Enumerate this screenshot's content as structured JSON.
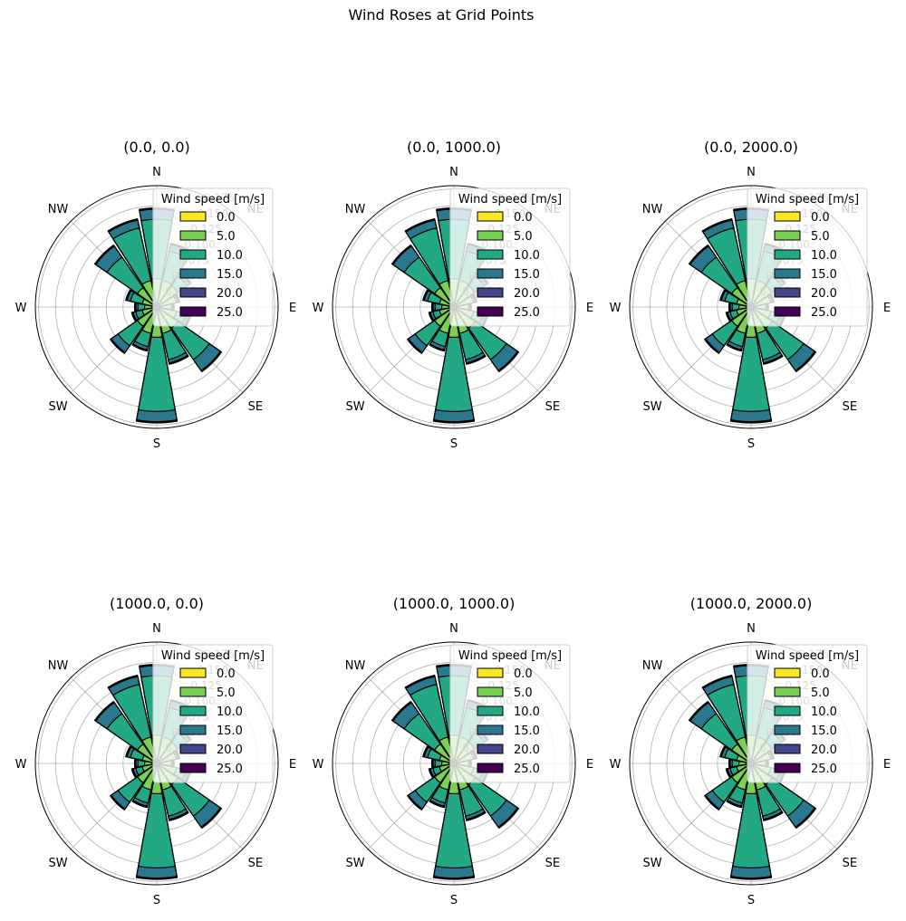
{
  "title": "Wind Roses at Grid Points",
  "chart_data": {
    "type": "wind_rose",
    "directions": [
      "N",
      "NNE",
      "NE",
      "ENE",
      "E",
      "ESE",
      "SE",
      "SSE",
      "S",
      "SSW",
      "SW",
      "WSW",
      "W",
      "WNW",
      "NW",
      "NNW"
    ],
    "direction_labels": [
      "N",
      "NE",
      "E",
      "SE",
      "S",
      "SW",
      "W",
      "NW"
    ],
    "radial_ticks": [
      "0.025",
      "0.050",
      "0.075",
      "0.100",
      "0.125",
      "0.150",
      "0.175"
    ],
    "rmax": 0.18,
    "colors": {
      "bin_0": "#fde725",
      "bin_5": "#7ad151",
      "bin_10": "#22a884",
      "bin_15": "#2a788e",
      "bin_20": "#414487",
      "bin_25": "#440154"
    },
    "legend": {
      "title": "Wind speed [m/s]",
      "placement": "upper-right",
      "entries": [
        "0.0",
        "5.0",
        "10.0",
        "15.0",
        "20.0",
        "25.0"
      ]
    },
    "series": [
      {
        "name": "0.0",
        "values": [
          0.005,
          0.005,
          0.005,
          0.005,
          0.005,
          0.005,
          0.005,
          0.005,
          0.005,
          0.005,
          0.005,
          0.005,
          0.005,
          0.005,
          0.005,
          0.005
        ]
      },
      {
        "name": "5.0",
        "values": [
          0.042,
          0.04,
          0.038,
          0.03,
          0.022,
          0.03,
          0.038,
          0.04,
          0.045,
          0.04,
          0.035,
          0.022,
          0.018,
          0.022,
          0.035,
          0.04
        ]
      },
      {
        "name": "10.0",
        "values": [
          0.13,
          0.085,
          0.055,
          0.03,
          0.022,
          0.045,
          0.095,
          0.08,
          0.155,
          0.06,
          0.07,
          0.032,
          0.028,
          0.04,
          0.09,
          0.12
        ]
      },
      {
        "name": "15.0",
        "values": [
          0.145,
          0.095,
          0.06,
          0.033,
          0.024,
          0.05,
          0.115,
          0.085,
          0.17,
          0.065,
          0.082,
          0.036,
          0.031,
          0.045,
          0.11,
          0.132
        ]
      },
      {
        "name": "20.0",
        "values": [
          0.146,
          0.096,
          0.061,
          0.034,
          0.025,
          0.051,
          0.116,
          0.086,
          0.171,
          0.066,
          0.083,
          0.037,
          0.032,
          0.046,
          0.111,
          0.133
        ]
      },
      {
        "name": "25.0",
        "values": [
          0.147,
          0.097,
          0.062,
          0.035,
          0.026,
          0.052,
          0.117,
          0.087,
          0.172,
          0.067,
          0.084,
          0.038,
          0.033,
          0.047,
          0.112,
          0.134
        ]
      }
    ],
    "subplots": [
      {
        "title": "(0.0, 0.0)"
      },
      {
        "title": "(0.0, 1000.0)"
      },
      {
        "title": "(0.0, 2000.0)"
      },
      {
        "title": "(1000.0, 0.0)"
      },
      {
        "title": "(1000.0, 1000.0)"
      },
      {
        "title": "(1000.0, 2000.0)"
      }
    ]
  }
}
